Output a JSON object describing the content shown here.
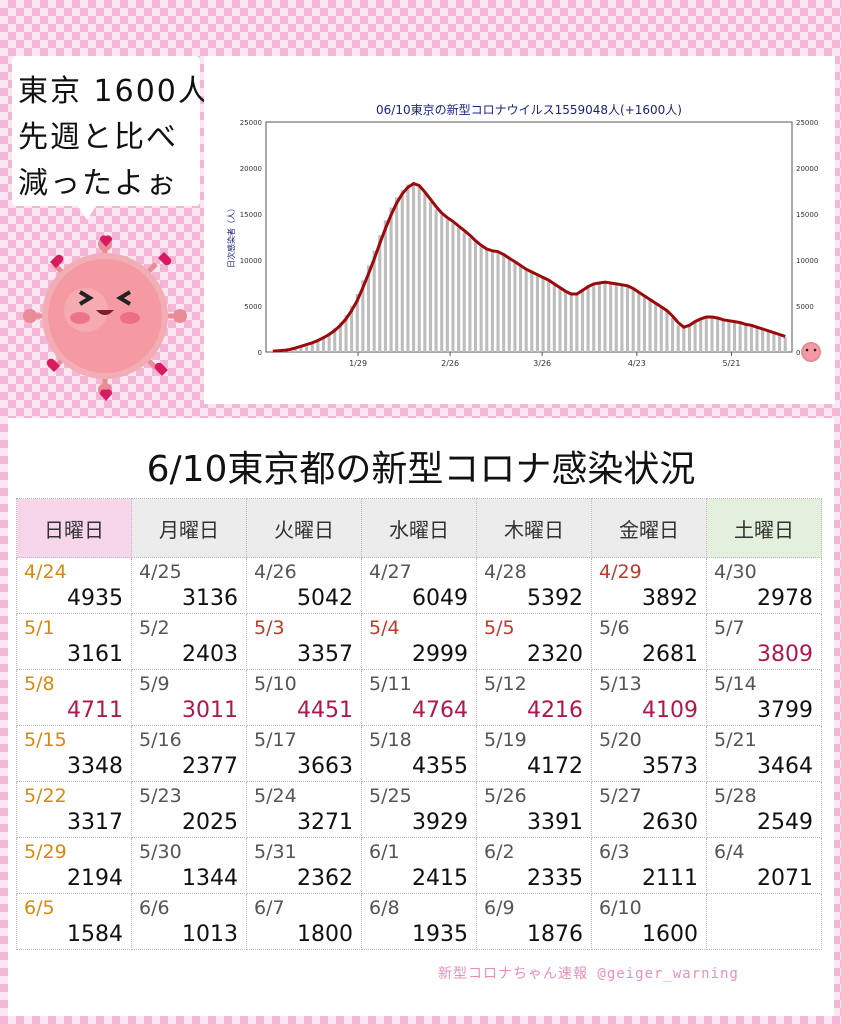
{
  "bubble": {
    "line1": "東京 1600人",
    "line2": "先週と比べ",
    "line3": "減ったよぉ"
  },
  "chart_data": {
    "type": "bar",
    "title": "06/10東京の新型コロナウイルス1559048人(+1600人)",
    "ylabel": "日次感染者（人）",
    "xlabel": "",
    "ylim": [
      0,
      25000
    ],
    "y_ticks": [
      0,
      5000,
      10000,
      15000,
      20000,
      25000
    ],
    "x_tick_labels": [
      "1/29",
      "2/26",
      "3/26",
      "4/23",
      "5/21"
    ],
    "grid": false,
    "bar_color": "#bdbdbd",
    "line_color": "#9b0a0a",
    "series": [
      {
        "values": [
          120,
          150,
          200,
          300,
          500,
          700,
          900,
          1100,
          1400,
          1700,
          2100,
          2600,
          3200,
          4000,
          5000,
          6300,
          7800,
          9400,
          11000,
          12700,
          14300,
          15700,
          16800,
          17600,
          18200,
          18500,
          18000,
          17200,
          16300,
          15500,
          14900,
          14400,
          14000,
          13500,
          13000,
          12400,
          11900,
          11400,
          11100,
          11000,
          10800,
          10500,
          10100,
          9700,
          9300,
          8900,
          8600,
          8300,
          8000,
          7700,
          7300,
          6900,
          6500,
          6300,
          6400,
          6900,
          7300,
          7500,
          7600,
          7600,
          7500,
          7400,
          7300,
          7100,
          6800,
          6400,
          6000,
          5600,
          5200,
          4800,
          4400,
          3700,
          2900,
          2600,
          3000,
          3400,
          3700,
          3900,
          3800,
          3600,
          3500,
          3300,
          3200,
          3100,
          3000,
          2800,
          2600,
          2400,
          2200,
          2000,
          1800,
          1600
        ]
      },
      {
        "values": [
          100,
          130,
          180,
          270,
          440,
          620,
          810,
          1000,
          1250,
          1550,
          1900,
          2350,
          2900,
          3600,
          4500,
          5600,
          7000,
          8500,
          10100,
          11800,
          13400,
          14900,
          16200,
          17200,
          17900,
          18300,
          18100,
          17400,
          16600,
          15800,
          15100,
          14600,
          14200,
          13700,
          13200,
          12700,
          12100,
          11600,
          11200,
          11000,
          10900,
          10600,
          10200,
          9800,
          9400,
          9000,
          8700,
          8400,
          8100,
          7800,
          7400,
          7000,
          6600,
          6300,
          6300,
          6700,
          7100,
          7400,
          7500,
          7600,
          7500,
          7400,
          7300,
          7200,
          6900,
          6500,
          6100,
          5700,
          5300,
          4900,
          4500,
          3900,
          3200,
          2700,
          2900,
          3300,
          3600,
          3800,
          3800,
          3700,
          3500,
          3400,
          3300,
          3200,
          3000,
          2900,
          2700,
          2500,
          2300,
          2100,
          1900,
          1700
        ]
      }
    ]
  },
  "table": {
    "title": "6/10東京都の新型コロナ感染状況",
    "headers": [
      {
        "label": "日曜日",
        "bg": "#f7d6ec"
      },
      {
        "label": "月曜日",
        "bg": "#ececec"
      },
      {
        "label": "火曜日",
        "bg": "#ececec"
      },
      {
        "label": "水曜日",
        "bg": "#ececec"
      },
      {
        "label": "木曜日",
        "bg": "#ececec"
      },
      {
        "label": "金曜日",
        "bg": "#ececec"
      },
      {
        "label": "土曜日",
        "bg": "#e2f0dc"
      }
    ],
    "rows": [
      [
        {
          "d": "4/24",
          "c": "4935",
          "dc": "sunc"
        },
        {
          "d": "4/25",
          "c": "3136"
        },
        {
          "d": "4/26",
          "c": "5042"
        },
        {
          "d": "4/27",
          "c": "6049"
        },
        {
          "d": "4/28",
          "c": "5392"
        },
        {
          "d": "4/29",
          "c": "3892",
          "dc": "hol"
        },
        {
          "d": "4/30",
          "c": "2978"
        }
      ],
      [
        {
          "d": "5/1",
          "c": "3161",
          "dc": "sunc"
        },
        {
          "d": "5/2",
          "c": "2403"
        },
        {
          "d": "5/3",
          "c": "3357",
          "dc": "hol"
        },
        {
          "d": "5/4",
          "c": "2999",
          "dc": "hol"
        },
        {
          "d": "5/5",
          "c": "2320",
          "dc": "hol"
        },
        {
          "d": "5/6",
          "c": "2681"
        },
        {
          "d": "5/7",
          "c": "3809",
          "cc": "redc"
        }
      ],
      [
        {
          "d": "5/8",
          "c": "4711",
          "dc": "sunc",
          "cc": "redc"
        },
        {
          "d": "5/9",
          "c": "3011",
          "cc": "redc"
        },
        {
          "d": "5/10",
          "c": "4451",
          "cc": "redc"
        },
        {
          "d": "5/11",
          "c": "4764",
          "cc": "redc"
        },
        {
          "d": "5/12",
          "c": "4216",
          "cc": "redc"
        },
        {
          "d": "5/13",
          "c": "4109",
          "cc": "redc"
        },
        {
          "d": "5/14",
          "c": "3799"
        }
      ],
      [
        {
          "d": "5/15",
          "c": "3348",
          "dc": "sunc"
        },
        {
          "d": "5/16",
          "c": "2377"
        },
        {
          "d": "5/17",
          "c": "3663"
        },
        {
          "d": "5/18",
          "c": "4355"
        },
        {
          "d": "5/19",
          "c": "4172"
        },
        {
          "d": "5/20",
          "c": "3573"
        },
        {
          "d": "5/21",
          "c": "3464"
        }
      ],
      [
        {
          "d": "5/22",
          "c": "3317",
          "dc": "sunc"
        },
        {
          "d": "5/23",
          "c": "2025"
        },
        {
          "d": "5/24",
          "c": "3271"
        },
        {
          "d": "5/25",
          "c": "3929"
        },
        {
          "d": "5/26",
          "c": "3391"
        },
        {
          "d": "5/27",
          "c": "2630"
        },
        {
          "d": "5/28",
          "c": "2549"
        }
      ],
      [
        {
          "d": "5/29",
          "c": "2194",
          "dc": "sunc"
        },
        {
          "d": "5/30",
          "c": "1344"
        },
        {
          "d": "5/31",
          "c": "2362"
        },
        {
          "d": "6/1",
          "c": "2415"
        },
        {
          "d": "6/2",
          "c": "2335"
        },
        {
          "d": "6/3",
          "c": "2111"
        },
        {
          "d": "6/4",
          "c": "2071"
        }
      ],
      [
        {
          "d": "6/5",
          "c": "1584",
          "dc": "sunc"
        },
        {
          "d": "6/6",
          "c": "1013"
        },
        {
          "d": "6/7",
          "c": "1800"
        },
        {
          "d": "6/8",
          "c": "1935"
        },
        {
          "d": "6/9",
          "c": "1876"
        },
        {
          "d": "6/10",
          "c": "1600"
        },
        {
          "d": "",
          "c": ""
        }
      ]
    ]
  },
  "footer": {
    "credit": "新型コロナちゃん速報 @geiger_warning"
  }
}
